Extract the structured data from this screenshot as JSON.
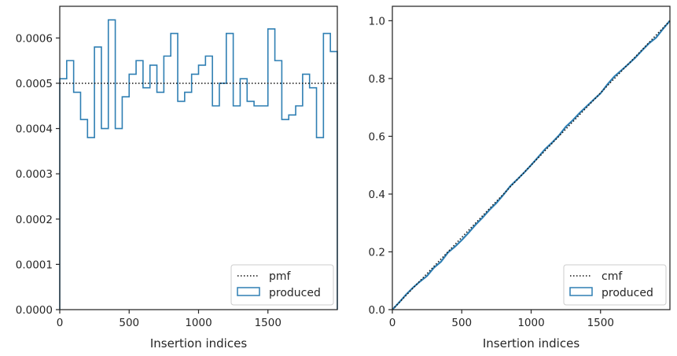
{
  "colors": {
    "produced": "#2f7fb3",
    "reference": "#111111",
    "axes": "#262626"
  },
  "chart_data": [
    {
      "type": "line",
      "subtype": "histogram-step",
      "xlabel": "Insertion indices",
      "ylabel": "",
      "xlim": [
        0,
        2000
      ],
      "ylim": [
        0,
        0.00067
      ],
      "xticks": [
        0,
        500,
        1000,
        1500
      ],
      "xtick_labels": [
        "0",
        "500",
        "1000",
        "1500"
      ],
      "yticks": [
        0,
        0.0001,
        0.0002,
        0.0003,
        0.0004,
        0.0005,
        0.0006
      ],
      "ytick_labels": [
        "0.0000",
        "0.0001",
        "0.0002",
        "0.0003",
        "0.0004",
        "0.0005",
        "0.0006"
      ],
      "grid": false,
      "legend_position": "lower-right",
      "series": [
        {
          "name": "pmf",
          "style": "dotted",
          "x": [
            0,
            2000
          ],
          "y": [
            0.0005,
            0.0005
          ]
        },
        {
          "name": "produced",
          "style": "step",
          "bin_edges": [
            0,
            50,
            100,
            150,
            200,
            250,
            300,
            350,
            400,
            450,
            500,
            550,
            600,
            650,
            700,
            750,
            800,
            850,
            900,
            950,
            1000,
            1050,
            1100,
            1150,
            1200,
            1250,
            1300,
            1350,
            1400,
            1450,
            1500,
            1550,
            1600,
            1650,
            1700,
            1750,
            1800,
            1850,
            1900,
            1950,
            2000
          ],
          "values": [
            0.00051,
            0.00055,
            0.00048,
            0.00042,
            0.00038,
            0.00058,
            0.0004,
            0.00064,
            0.0004,
            0.00047,
            0.00052,
            0.00055,
            0.00049,
            0.00054,
            0.00048,
            0.00056,
            0.00061,
            0.00046,
            0.00048,
            0.00052,
            0.00054,
            0.00056,
            0.00045,
            0.0005,
            0.00061,
            0.00045,
            0.00051,
            0.00046,
            0.00045,
            0.00045,
            0.00062,
            0.00055,
            0.00042,
            0.00043,
            0.00045,
            0.00052,
            0.00049,
            0.00038,
            0.00061,
            0.00057
          ]
        }
      ]
    },
    {
      "type": "line",
      "subtype": "cumulative",
      "xlabel": "Insertion indices",
      "ylabel": "",
      "xlim": [
        0,
        2000
      ],
      "ylim": [
        0,
        1.05
      ],
      "xticks": [
        0,
        500,
        1000,
        1500
      ],
      "xtick_labels": [
        "0",
        "500",
        "1000",
        "1500"
      ],
      "yticks": [
        0,
        0.2,
        0.4,
        0.6,
        0.8,
        1.0
      ],
      "ytick_labels": [
        "0.0",
        "0.2",
        "0.4",
        "0.6",
        "0.8",
        "1.0"
      ],
      "grid": false,
      "legend_position": "lower-right",
      "series": [
        {
          "name": "cmf",
          "style": "dotted",
          "x": [
            0,
            2000
          ],
          "y": [
            0,
            1
          ]
        },
        {
          "name": "produced",
          "style": "step-cumulative",
          "source": "left-panel-produced"
        }
      ]
    }
  ]
}
